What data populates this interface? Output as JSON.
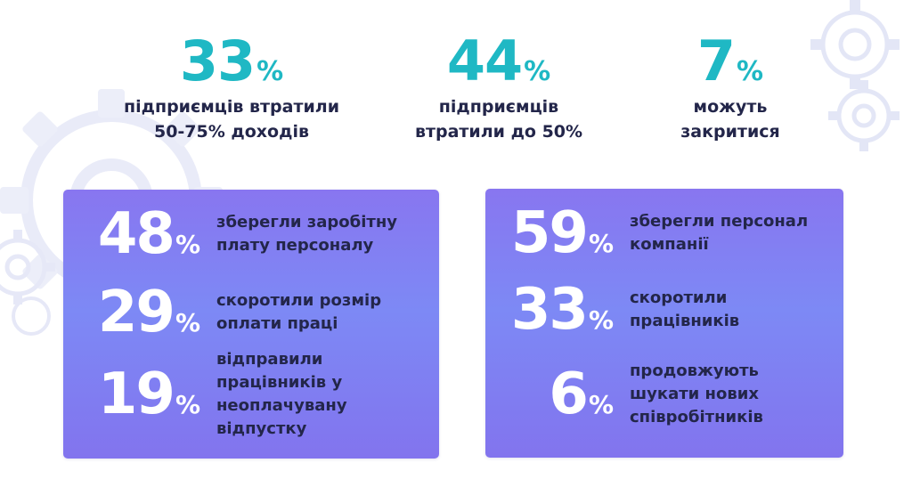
{
  "top_stats": [
    {
      "value": "33",
      "unit": "%",
      "label_line1": "підприємців втратили",
      "label_line2": "50-75% доходів"
    },
    {
      "value": "44",
      "unit": "%",
      "label_line1": "підприємців",
      "label_line2": "втратили до 50%"
    },
    {
      "value": "7",
      "unit": "%",
      "label_line1": "можуть",
      "label_line2": "закритися"
    }
  ],
  "left_card": {
    "rows": [
      {
        "value": "48",
        "unit": "%",
        "lines": [
          "зберегли заробітну",
          "плату персоналу"
        ]
      },
      {
        "value": "29",
        "unit": "%",
        "lines": [
          "скоротили розмір",
          "оплати праці"
        ]
      },
      {
        "value": "19",
        "unit": "%",
        "lines": [
          "відправили",
          "працівників у",
          "неоплачувану",
          "відпустку"
        ]
      }
    ]
  },
  "right_card": {
    "rows": [
      {
        "value": "59",
        "unit": "%",
        "lines": [
          "зберегли персонал",
          "компанії"
        ]
      },
      {
        "value": "33",
        "unit": "%",
        "lines": [
          "скоротили",
          "працівників"
        ]
      },
      {
        "value": "6",
        "unit": "%",
        "lines": [
          "продовжують",
          "шукати нових",
          "співробітників"
        ]
      }
    ]
  },
  "colors": {
    "accent": "#1fb8c4",
    "text_dark": "#23264a",
    "card_gradient_top": "#8876f0",
    "card_gradient_mid": "#7d89f5",
    "gear": "#e6e8f7"
  },
  "decor": [
    "gear-icon"
  ]
}
